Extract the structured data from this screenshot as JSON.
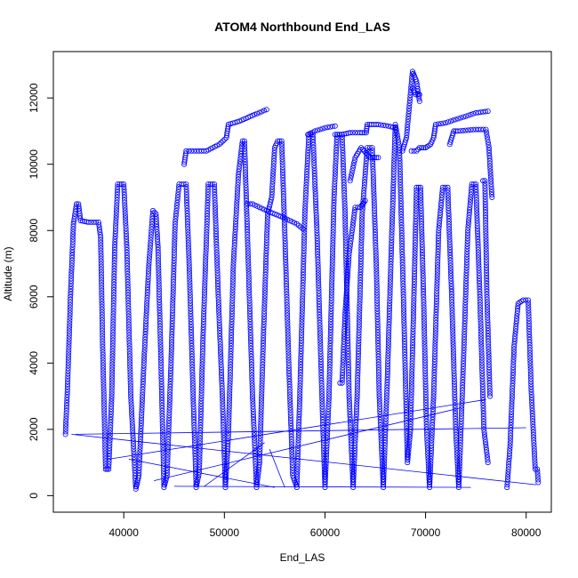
{
  "chart_data": {
    "type": "scatter",
    "title": "ATOM4 Northbound End_LAS",
    "xlabel": "End_LAS",
    "ylabel": "Altitude (m)",
    "xlim": [
      33000,
      82500
    ],
    "ylim": [
      -500,
      13400
    ],
    "xticks": [
      40000,
      50000,
      60000,
      70000,
      80000
    ],
    "yticks": [
      0,
      2000,
      4000,
      6000,
      8000,
      10000,
      12000
    ],
    "xtick_labels": [
      "40000",
      "50000",
      "60000",
      "70000",
      "80000"
    ],
    "ytick_labels": [
      "0",
      "2000",
      "4000",
      "6000",
      "8000",
      "10000",
      "12000"
    ],
    "grid": false,
    "color": "#0000ff",
    "connecting_lines": [
      [
        [
          34800,
          1850
        ],
        [
          81000,
          330
        ]
      ],
      [
        [
          35200,
          1850
        ],
        [
          80000,
          2050
        ]
      ],
      [
        [
          38500,
          1100
        ],
        [
          76000,
          2900
        ]
      ],
      [
        [
          43000,
          450
        ],
        [
          73500,
          2650
        ]
      ],
      [
        [
          45000,
          280
        ],
        [
          74500,
          250
        ]
      ],
      [
        [
          40500,
          1100
        ],
        [
          55000,
          250
        ]
      ],
      [
        [
          48000,
          280
        ],
        [
          54000,
          1600
        ]
      ],
      [
        [
          54500,
          1400
        ],
        [
          56000,
          250
        ]
      ]
    ],
    "series": [
      {
        "values": [
          {
            "path": [
              [
                34200,
                1850
              ],
              [
                34400,
                3200
              ],
              [
                34700,
                6000
              ],
              [
                35000,
                8200
              ],
              [
                35300,
                8800
              ],
              [
                35500,
                8800
              ],
              [
                35700,
                8300
              ],
              [
                36500,
                8250
              ],
              [
                37500,
                8250
              ],
              [
                37700,
                7800
              ],
              [
                37900,
                4500
              ],
              [
                38200,
                800
              ],
              [
                38500,
                800
              ],
              [
                38800,
                3000
              ],
              [
                39100,
                7500
              ],
              [
                39400,
                9400
              ],
              [
                40000,
                9400
              ],
              [
                40300,
                7500
              ],
              [
                40700,
                3000
              ],
              [
                41200,
                200
              ],
              [
                41500,
                600
              ],
              [
                42000,
                4000
              ],
              [
                42500,
                7000
              ],
              [
                42900,
                8600
              ],
              [
                43200,
                8500
              ],
              [
                43400,
                7500
              ],
              [
                43700,
                4000
              ],
              [
                44000,
                250
              ],
              [
                44300,
                600
              ],
              [
                44700,
                4000
              ],
              [
                45100,
                8200
              ],
              [
                45500,
                9400
              ],
              [
                46200,
                9400
              ],
              [
                46500,
                7000
              ],
              [
                46900,
                3000
              ],
              [
                47200,
                250
              ],
              [
                47500,
                700
              ],
              [
                47900,
                5000
              ],
              [
                48400,
                9400
              ],
              [
                49000,
                9400
              ],
              [
                49400,
                6000
              ],
              [
                49800,
                3000
              ],
              [
                50100,
                250
              ],
              [
                50400,
                1800
              ],
              [
                50900,
                7000
              ],
              [
                51400,
                9700
              ],
              [
                51800,
                10700
              ],
              [
                52000,
                10700
              ],
              [
                52300,
                7800
              ],
              [
                52800,
                3000
              ],
              [
                53200,
                250
              ],
              [
                53500,
                1000
              ],
              [
                53900,
                5000
              ],
              [
                54300,
                8500
              ],
              [
                54700,
                9000
              ],
              [
                55000,
                10500
              ],
              [
                55300,
                10700
              ],
              [
                55700,
                10700
              ],
              [
                56000,
                8000
              ],
              [
                56400,
                4000
              ],
              [
                56800,
                600
              ],
              [
                57200,
                250
              ],
              [
                57500,
                3000
              ],
              [
                58000,
                8500
              ],
              [
                58400,
                10900
              ],
              [
                58800,
                10900
              ],
              [
                59200,
                8000
              ],
              [
                59700,
                3000
              ],
              [
                60000,
                250
              ],
              [
                60400,
                3000
              ],
              [
                60900,
                9000
              ],
              [
                61200,
                10900
              ],
              [
                61700,
                10900
              ],
              [
                62000,
                8500
              ],
              [
                62400,
                3000
              ],
              [
                62800,
                250
              ],
              [
                63200,
                3000
              ],
              [
                63700,
                8500
              ],
              [
                64200,
                10500
              ],
              [
                64700,
                10500
              ],
              [
                65100,
                7000
              ],
              [
                65400,
                3000
              ],
              [
                65800,
                250
              ],
              [
                66200,
                3500
              ],
              [
                66700,
                8500
              ],
              [
                67000,
                11200
              ],
              [
                67400,
                10500
              ],
              [
                67800,
                6000
              ],
              [
                68200,
                1000
              ],
              [
                68500,
                2000
              ],
              [
                68800,
                5500
              ],
              [
                69100,
                9300
              ],
              [
                69500,
                9300
              ],
              [
                69800,
                6000
              ],
              [
                70100,
                2000
              ],
              [
                70400,
                250
              ],
              [
                70800,
                3000
              ],
              [
                71300,
                8000
              ],
              [
                71700,
                9300
              ],
              [
                72200,
                9300
              ],
              [
                72600,
                6000
              ],
              [
                73000,
                2000
              ],
              [
                73300,
                250
              ],
              [
                73700,
                3500
              ],
              [
                74200,
                8000
              ],
              [
                74600,
                9400
              ],
              [
                75000,
                9400
              ],
              [
                75400,
                6000
              ],
              [
                75800,
                2000
              ],
              [
                76200,
                1000
              ]
            ]
          },
          {
            "path": [
              [
                75700,
                9500
              ],
              [
                75900,
                9500
              ],
              [
                76100,
                6000
              ],
              [
                76400,
                3000
              ]
            ]
          },
          {
            "path": [
              [
                78100,
                250
              ],
              [
                78400,
                1500
              ],
              [
                78800,
                4500
              ],
              [
                79200,
                5800
              ],
              [
                79700,
                5900
              ],
              [
                80200,
                5900
              ],
              [
                80500,
                3200
              ],
              [
                80900,
                800
              ],
              [
                81100,
                800
              ],
              [
                81200,
                400
              ]
            ]
          },
          {
            "path": [
              [
                46000,
                10000
              ],
              [
                46200,
                10400
              ],
              [
                47500,
                10400
              ],
              [
                48200,
                10400
              ],
              [
                49500,
                10600
              ],
              [
                50200,
                10800
              ],
              [
                50400,
                11200
              ],
              [
                51500,
                11300
              ],
              [
                53000,
                11500
              ],
              [
                54200,
                11650
              ]
            ]
          },
          {
            "path": [
              [
                52300,
                8800
              ],
              [
                52800,
                8800
              ],
              [
                53500,
                8700
              ],
              [
                54200,
                8600
              ],
              [
                55000,
                8500
              ],
              [
                55800,
                8400
              ],
              [
                56500,
                8300
              ],
              [
                57200,
                8200
              ],
              [
                57800,
                8050
              ]
            ]
          },
          {
            "path": [
              [
                58300,
                10900
              ],
              [
                59000,
                11000
              ],
              [
                60000,
                11100
              ],
              [
                61000,
                11150
              ]
            ]
          },
          {
            "path": [
              [
                61000,
                10900
              ],
              [
                61700,
                10900
              ],
              [
                62500,
                10950
              ],
              [
                63500,
                10950
              ],
              [
                64100,
                10950
              ],
              [
                64200,
                11200
              ],
              [
                65300,
                11200
              ],
              [
                66300,
                11150
              ],
              [
                67000,
                11100
              ]
            ]
          },
          {
            "path": [
              [
                67700,
                10400
              ],
              [
                68100,
                10800
              ],
              [
                68700,
                12800
              ],
              [
                69100,
                12500
              ],
              [
                69400,
                11900
              ]
            ]
          },
          {
            "path": [
              [
                68700,
                12300
              ],
              [
                69000,
                12100
              ],
              [
                69400,
                12100
              ]
            ]
          },
          {
            "path": [
              [
                68600,
                10400
              ],
              [
                69100,
                10400
              ],
              [
                69400,
                10500
              ],
              [
                70000,
                10500
              ],
              [
                70500,
                10600
              ],
              [
                70800,
                10800
              ],
              [
                71000,
                11200
              ],
              [
                72000,
                11250
              ],
              [
                73500,
                11400
              ],
              [
                75000,
                11550
              ],
              [
                76200,
                11600
              ]
            ]
          },
          {
            "path": [
              [
                72400,
                10600
              ],
              [
                72800,
                11000
              ],
              [
                73200,
                11000
              ],
              [
                75000,
                11050
              ],
              [
                76000,
                11050
              ],
              [
                76300,
                10500
              ],
              [
                76600,
                9000
              ]
            ]
          },
          {
            "path": [
              [
                61500,
                3400
              ],
              [
                61700,
                3400
              ],
              [
                62000,
                5500
              ],
              [
                62400,
                7300
              ],
              [
                63000,
                8700
              ],
              [
                63500,
                8700
              ],
              [
                64000,
                8900
              ]
            ]
          },
          {
            "path": [
              [
                62500,
                9500
              ],
              [
                63000,
                10200
              ],
              [
                63600,
                10500
              ],
              [
                64500,
                10200
              ],
              [
                65300,
                10200
              ]
            ]
          }
        ]
      }
    ]
  }
}
